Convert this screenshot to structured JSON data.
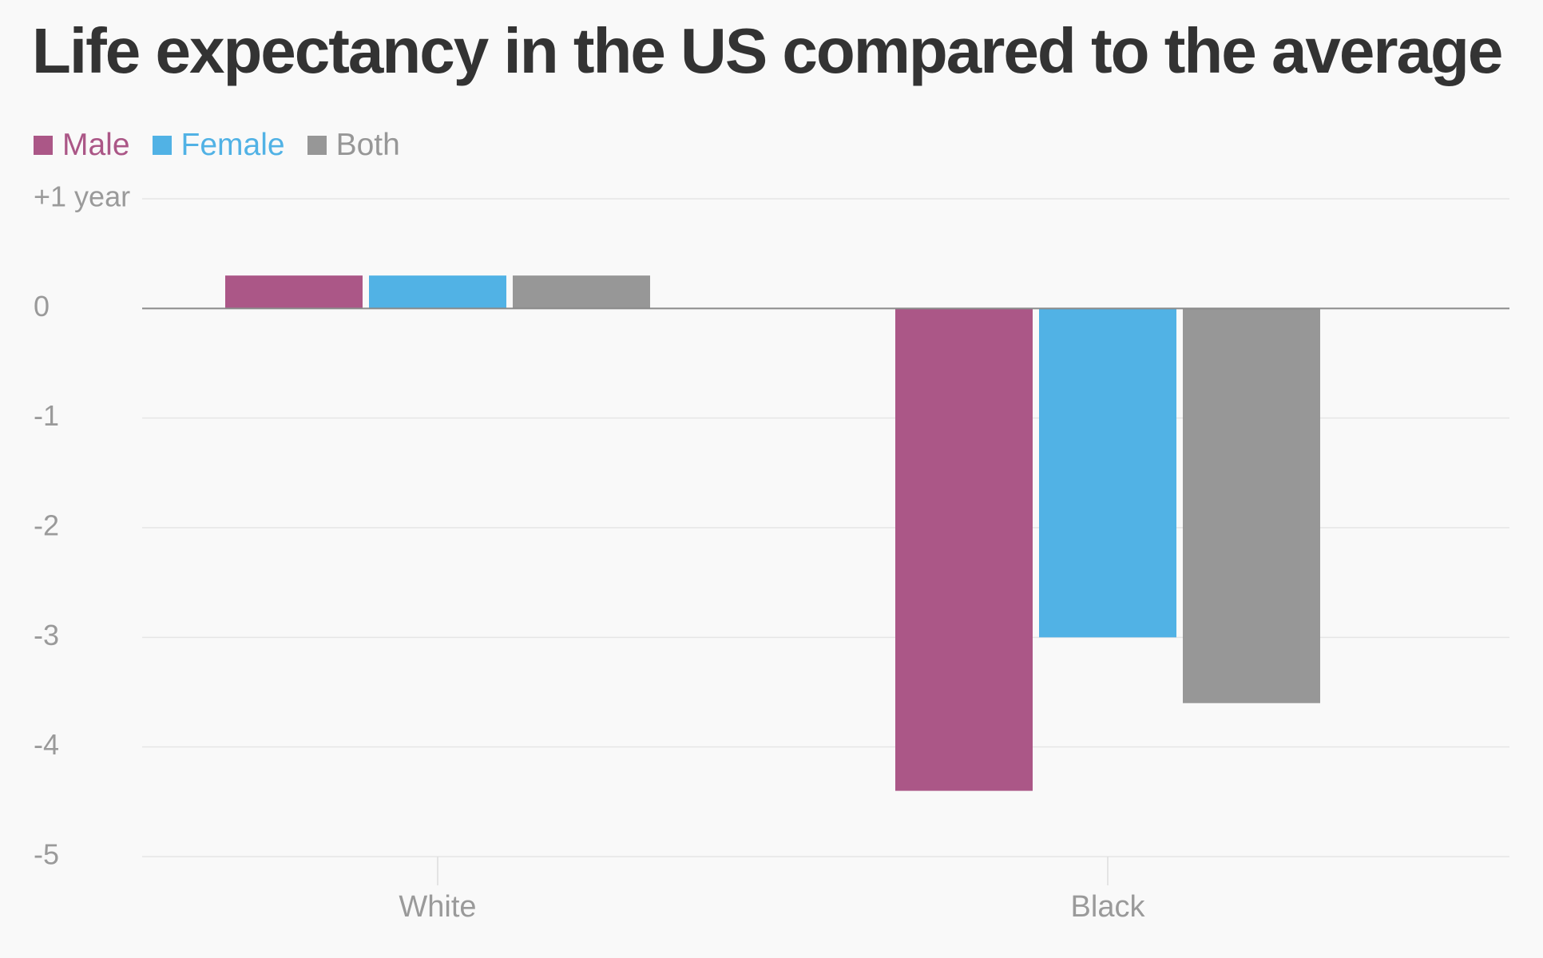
{
  "chart_data": {
    "type": "bar",
    "title": "Life expectancy in the US compared to the average",
    "categories": [
      "White",
      "Black"
    ],
    "series": [
      {
        "name": "Male",
        "color": "#ab5787",
        "values": [
          0.3,
          -4.4
        ]
      },
      {
        "name": "Female",
        "color": "#51b2e5",
        "values": [
          0.3,
          -3.0
        ]
      },
      {
        "name": "Both",
        "color": "#979797",
        "values": [
          0.3,
          -3.6
        ]
      }
    ],
    "ylim": [
      -5,
      1
    ],
    "yticks": [
      {
        "value": 1,
        "label": "+1 year"
      },
      {
        "value": 0,
        "label": "0"
      },
      {
        "value": -1,
        "label": "-1"
      },
      {
        "value": -2,
        "label": "-2"
      },
      {
        "value": -3,
        "label": "-3"
      },
      {
        "value": -4,
        "label": "-4"
      },
      {
        "value": -5,
        "label": "-5"
      }
    ],
    "xlabel": "",
    "ylabel": "",
    "grid": true,
    "legend_position": "top-left"
  }
}
